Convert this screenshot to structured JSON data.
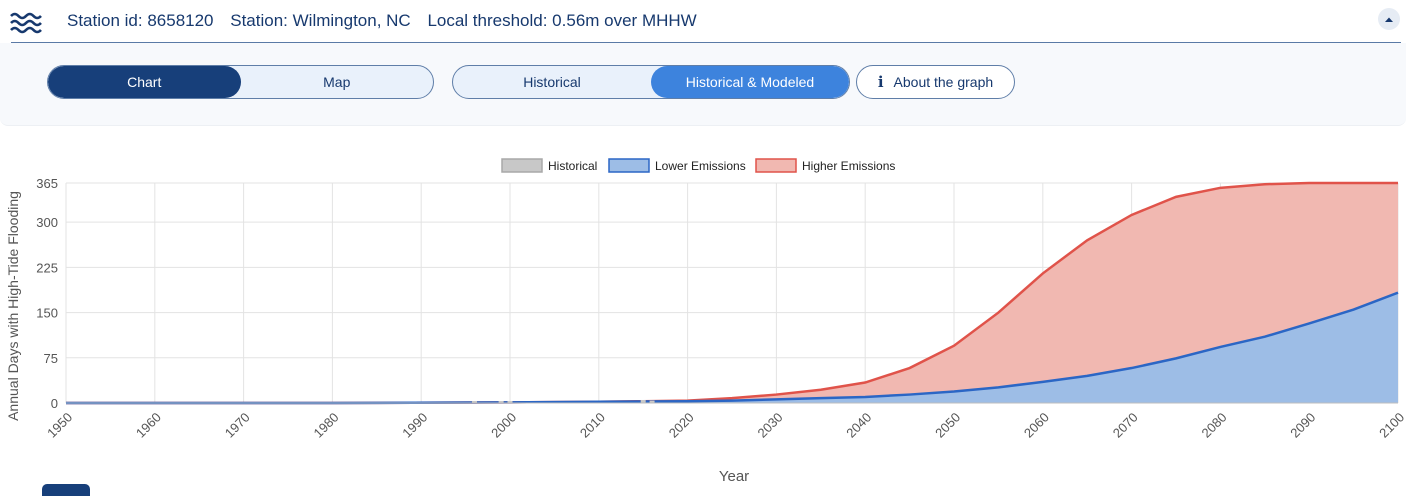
{
  "header": {
    "station_id": "Station id: 8658120",
    "station_name": "Station: Wilmington, NC",
    "threshold": "Local threshold: 0.56m over MHHW",
    "icon": "waves-icon",
    "collapse_icon": "chevron-up-icon"
  },
  "view_toggle": {
    "options": [
      "Chart",
      "Map"
    ],
    "selected": "Chart"
  },
  "data_toggle": {
    "options": [
      "Historical",
      "Historical & Modeled"
    ],
    "selected": "Historical & Modeled"
  },
  "about": {
    "label": "About the graph",
    "icon": "info-icon"
  },
  "colors": {
    "brand_dark": "#173f7a",
    "accent_blue": "#3d83dd",
    "lower_line": "#2b66c5",
    "lower_fill": "#9dbde6",
    "higher_line": "#e0534a",
    "higher_fill": "#f1b8b1",
    "historical": "#c8c8c8"
  },
  "chart_data": {
    "type": "area",
    "xlabel": "Year",
    "ylabel": "Annual Days with High-Tide Flooding",
    "xlim": [
      1950,
      2100
    ],
    "ylim": [
      0,
      365
    ],
    "yticks": [
      0,
      75,
      150,
      225,
      300,
      365
    ],
    "xticks": [
      1950,
      1960,
      1970,
      1980,
      1990,
      2000,
      2010,
      2020,
      2030,
      2040,
      2050,
      2060,
      2070,
      2080,
      2090,
      2100
    ],
    "grid": true,
    "legend_position": "top-center",
    "series": [
      {
        "name": "Historical",
        "type": "bar",
        "color": "#c8c8c8",
        "points": [
          [
            1996,
            1
          ],
          [
            1999,
            1
          ],
          [
            2000,
            2
          ],
          [
            2015,
            5
          ],
          [
            2016,
            4
          ]
        ]
      },
      {
        "name": "Lower Emissions",
        "type": "area",
        "color": "#2b66c5",
        "fill": "#9dbde6",
        "points": [
          [
            1950,
            0
          ],
          [
            1980,
            0
          ],
          [
            2000,
            1
          ],
          [
            2010,
            2
          ],
          [
            2020,
            3
          ],
          [
            2025,
            4
          ],
          [
            2030,
            6
          ],
          [
            2035,
            8
          ],
          [
            2040,
            10
          ],
          [
            2045,
            14
          ],
          [
            2050,
            19
          ],
          [
            2055,
            26
          ],
          [
            2060,
            35
          ],
          [
            2065,
            45
          ],
          [
            2070,
            58
          ],
          [
            2075,
            74
          ],
          [
            2080,
            93
          ],
          [
            2085,
            110
          ],
          [
            2090,
            132
          ],
          [
            2095,
            155
          ],
          [
            2100,
            183
          ]
        ]
      },
      {
        "name": "Higher Emissions",
        "type": "area",
        "color": "#e0534a",
        "fill": "#f1b8b1",
        "points": [
          [
            1950,
            0
          ],
          [
            1980,
            0
          ],
          [
            2000,
            1
          ],
          [
            2010,
            2
          ],
          [
            2015,
            3
          ],
          [
            2020,
            4
          ],
          [
            2025,
            8
          ],
          [
            2030,
            14
          ],
          [
            2035,
            22
          ],
          [
            2040,
            34
          ],
          [
            2045,
            58
          ],
          [
            2050,
            95
          ],
          [
            2055,
            150
          ],
          [
            2060,
            215
          ],
          [
            2065,
            270
          ],
          [
            2070,
            312
          ],
          [
            2075,
            342
          ],
          [
            2080,
            357
          ],
          [
            2085,
            363
          ],
          [
            2090,
            365
          ],
          [
            2100,
            365
          ]
        ]
      }
    ]
  }
}
